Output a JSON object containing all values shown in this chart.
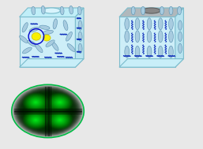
{
  "bg_color": "#e8e8e8",
  "box_face_color": "#cdeef8",
  "box_edge_color": "#7bbccc",
  "box_top_left": "#c0eef8",
  "box_top_right": "#b0b8bc",
  "box_side_color": "#b8e4f0",
  "box_bottom_color": "#c8eef8",
  "ellipsoid_fill": "#a8cce0",
  "ellipsoid_edge": "#5890b0",
  "wavy_color": "#1030bb",
  "blob_yellow": "#f8f000",
  "blob_edge": "#c8c000",
  "circle_blue": "#0000cc",
  "hole_left_color": "#d8f4fc",
  "hole_right_color": "#888888",
  "fl_bg": "#000000",
  "fl_green": "#00cc44",
  "dark_bg": "#050505"
}
